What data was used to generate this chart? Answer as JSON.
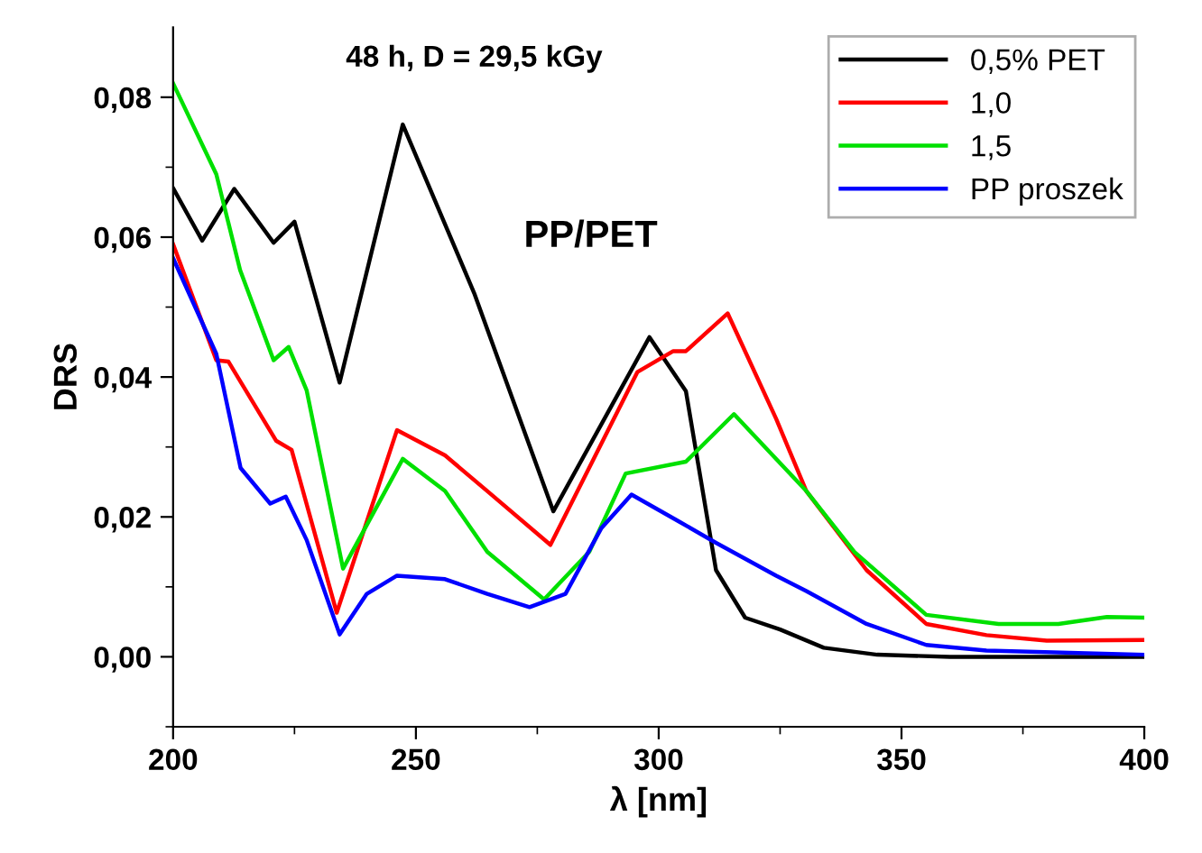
{
  "chart_data": {
    "type": "line",
    "title": "48 h, D = 29,5 kGy",
    "xlabel": "λ [nm]",
    "ylabel": "DRS",
    "annotations": [
      "PP/PET"
    ],
    "xlim": [
      200,
      400
    ],
    "xticks": [
      200,
      250,
      300,
      350,
      400
    ],
    "ylim": [
      -0.01,
      0.09
    ],
    "yticks": [
      {
        "value": 0.0,
        "label": "0,00"
      },
      {
        "value": 0.02,
        "label": "0,02"
      },
      {
        "value": 0.04,
        "label": "0,04"
      },
      {
        "value": 0.06,
        "label": "0,06"
      },
      {
        "value": 0.08,
        "label": "0,08"
      }
    ],
    "grid": false,
    "legend": "top right",
    "marker": "none",
    "line_style": "solid",
    "series": [
      {
        "name": "0,5% PET",
        "color": "#000000",
        "x": [
          200,
          206,
          212.6,
          220.7,
          225,
          234.3,
          247.3,
          262,
          278.3,
          298.1,
          305.6,
          311.8,
          317.8,
          325,
          334,
          345,
          360,
          400
        ],
        "values": [
          0.067,
          0.0595,
          0.0669,
          0.0592,
          0.0622,
          0.0392,
          0.0761,
          0.052,
          0.0208,
          0.0457,
          0.038,
          0.0124,
          0.0056,
          0.0039,
          0.0013,
          0.0003,
          0.0,
          0.0
        ]
      },
      {
        "name": "1,0",
        "color": "#ff0000",
        "x": [
          200,
          208.9,
          211.4,
          221.2,
          224.4,
          233.7,
          246.1,
          256,
          264.7,
          277.7,
          295.6,
          303,
          305.6,
          314.2,
          324.2,
          330.4,
          342.8,
          355.1,
          367.5,
          379.9,
          400
        ],
        "values": [
          0.059,
          0.0424,
          0.0422,
          0.0309,
          0.0296,
          0.0063,
          0.0324,
          0.0288,
          0.0237,
          0.016,
          0.0407,
          0.0437,
          0.0437,
          0.0491,
          0.034,
          0.0237,
          0.0124,
          0.0047,
          0.0031,
          0.0023,
          0.0024
        ]
      },
      {
        "name": "1,5",
        "color": "#00e000",
        "x": [
          200,
          208.9,
          213.8,
          220.7,
          223.8,
          227.5,
          235,
          247.3,
          256,
          264.7,
          276.4,
          285.7,
          293.2,
          305.6,
          315.5,
          330.4,
          340.3,
          355.1,
          370,
          382.3,
          392.3,
          400
        ],
        "values": [
          0.082,
          0.069,
          0.0553,
          0.0424,
          0.0443,
          0.0381,
          0.0126,
          0.0283,
          0.0237,
          0.015,
          0.0082,
          0.015,
          0.0262,
          0.0279,
          0.0347,
          0.0237,
          0.015,
          0.006,
          0.0047,
          0.0047,
          0.0057,
          0.0056
        ]
      },
      {
        "name": "PP proszek",
        "color": "#0000ff",
        "x": [
          200,
          208.9,
          213.9,
          220,
          223.2,
          227.5,
          234.3,
          239.9,
          246.1,
          256,
          264.7,
          273.4,
          280.8,
          288.2,
          294.4,
          304.3,
          311.8,
          324.2,
          330.4,
          342.8,
          355.1,
          367.5,
          400
        ],
        "values": [
          0.057,
          0.0433,
          0.027,
          0.0219,
          0.0229,
          0.0167,
          0.0032,
          0.009,
          0.0116,
          0.0111,
          0.009,
          0.0071,
          0.009,
          0.0184,
          0.0232,
          0.0193,
          0.0163,
          0.0116,
          0.0094,
          0.0047,
          0.0017,
          0.0009,
          0.0003
        ]
      }
    ]
  }
}
